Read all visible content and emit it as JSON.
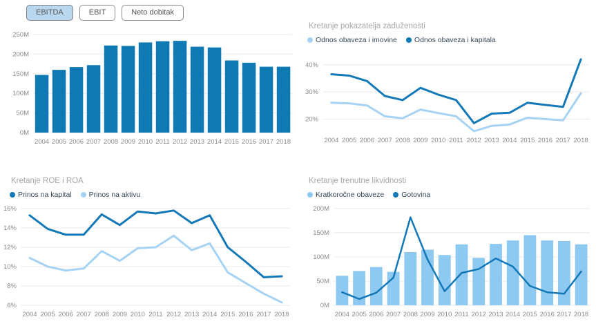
{
  "page": {
    "background": "#ffffff"
  },
  "colors": {
    "dark_blue": "#0f79b4",
    "light_blue_line": "#a6d2f4",
    "light_blue_bar": "#8dc9f0",
    "grid": "#eaeaea",
    "title_gray": "#a7a7a7",
    "axis_gray": "#8a8a8a",
    "legend_text": "#33475b",
    "button_selected_bg": "#b9d7ef"
  },
  "toolbar": {
    "buttons": [
      {
        "label": "EBITDA",
        "selected": true
      },
      {
        "label": "EBIT",
        "selected": false
      },
      {
        "label": "Neto dobitak",
        "selected": false
      }
    ]
  },
  "chart_data": [
    {
      "id": "ebitda-bars",
      "type": "bar",
      "title": "",
      "categories": [
        "2004",
        "2005",
        "2006",
        "2007",
        "2008",
        "2009",
        "2010",
        "2011",
        "2012",
        "2013",
        "2014",
        "2015",
        "2016",
        "2017",
        "2018"
      ],
      "series": [
        {
          "name": "EBITDA",
          "type": "bar",
          "color": "#0f79b4",
          "values": [
            147,
            160,
            167,
            172,
            222,
            221,
            230,
            233,
            234,
            219,
            217,
            184,
            178,
            168,
            168
          ]
        }
      ],
      "legend": [],
      "y_ticks": [
        {
          "value": 0,
          "label": "0M"
        },
        {
          "value": 50,
          "label": "50M"
        },
        {
          "value": 100,
          "label": "100M"
        },
        {
          "value": 150,
          "label": "150M"
        },
        {
          "value": 200,
          "label": "200M"
        },
        {
          "value": 250,
          "label": "250M"
        }
      ],
      "ylim": [
        0,
        250
      ],
      "unit": "M"
    },
    {
      "id": "debt-ratios",
      "type": "line",
      "title": "Kretanje pokazatelja zaduženosti",
      "categories": [
        "2004",
        "2005",
        "2006",
        "2007",
        "2008",
        "2009",
        "2010",
        "2011",
        "2012",
        "2013",
        "2014",
        "2015",
        "2016",
        "2017",
        "2018"
      ],
      "series": [
        {
          "name": "Odnos obaveza i imovine",
          "type": "line",
          "color": "#a6d2f4",
          "values": [
            26.0,
            25.8,
            25.0,
            21.0,
            20.3,
            23.5,
            22.2,
            21.0,
            15.5,
            17.5,
            18.0,
            20.5,
            20.0,
            19.5,
            29.5
          ]
        },
        {
          "name": "Odnos obaveza i kapitala",
          "type": "line",
          "color": "#1278b8",
          "values": [
            36.5,
            36.0,
            34.0,
            28.5,
            27.0,
            31.5,
            29.0,
            27.0,
            18.5,
            22.0,
            22.3,
            26.0,
            25.2,
            24.5,
            42.0
          ]
        }
      ],
      "legend": [
        {
          "label": "Odnos obaveza i imovine",
          "color": "#a6d2f4"
        },
        {
          "label": "Odnos obaveza i kapitala",
          "color": "#1278b8"
        }
      ],
      "y_ticks": [
        {
          "value": 20,
          "label": "20%"
        },
        {
          "value": 30,
          "label": "30%"
        },
        {
          "value": 40,
          "label": "40%"
        }
      ],
      "ylim": [
        15,
        43
      ],
      "unit": "%"
    },
    {
      "id": "roe-roa",
      "type": "line",
      "title": "Kretanje ROE i ROA",
      "categories": [
        "2004",
        "2005",
        "2006",
        "2007",
        "2008",
        "2009",
        "2010",
        "2011",
        "2012",
        "2013",
        "2014",
        "2015",
        "2016",
        "2017",
        "2018"
      ],
      "series": [
        {
          "name": "Prinos na aktivu",
          "type": "line",
          "color": "#a6d2f4",
          "values": [
            10.9,
            10.0,
            9.6,
            9.8,
            11.6,
            10.6,
            11.9,
            12.0,
            13.2,
            11.7,
            12.4,
            9.4,
            8.3,
            7.2,
            6.3
          ]
        },
        {
          "name": "Prinos na kapital",
          "type": "line",
          "color": "#1278b8",
          "values": [
            15.3,
            13.9,
            13.3,
            13.3,
            15.4,
            14.3,
            15.7,
            15.5,
            15.8,
            14.5,
            15.3,
            12.0,
            10.5,
            8.9,
            9.0
          ]
        }
      ],
      "legend": [
        {
          "label": "Prinos na kapital",
          "color": "#1278b8"
        },
        {
          "label": "Prinos na aktivu",
          "color": "#a6d2f4"
        }
      ],
      "y_ticks": [
        {
          "value": 6,
          "label": "6%"
        },
        {
          "value": 8,
          "label": "8%"
        },
        {
          "value": 10,
          "label": "10%"
        },
        {
          "value": 12,
          "label": "12%"
        },
        {
          "value": 14,
          "label": "14%"
        },
        {
          "value": 16,
          "label": "16%"
        }
      ],
      "ylim": [
        6,
        16
      ],
      "unit": "%"
    },
    {
      "id": "liquidity",
      "type": "combo",
      "title": "Kretanje trenutne likvidnosti",
      "categories": [
        "2004",
        "2005",
        "2006",
        "2007",
        "2008",
        "2009",
        "2010",
        "2011",
        "2012",
        "2013",
        "2014",
        "2015",
        "2016",
        "2017",
        "2018"
      ],
      "series": [
        {
          "name": "Kratkoročne obaveze",
          "type": "bar",
          "color": "#8dc9f0",
          "values": [
            61,
            71,
            79,
            69,
            110,
            115,
            104,
            126,
            98,
            127,
            134,
            145,
            134,
            133,
            126
          ]
        },
        {
          "name": "Gotovina",
          "type": "line",
          "color": "#1278b8",
          "values": [
            27,
            13,
            26,
            57,
            182,
            95,
            29,
            67,
            75,
            97,
            80,
            40,
            27,
            24,
            70
          ]
        }
      ],
      "legend": [
        {
          "label": "Kratkoročne obaveze",
          "color": "#8dc9f0"
        },
        {
          "label": "Gotovina",
          "color": "#1278b8"
        }
      ],
      "y_ticks": [
        {
          "value": 0,
          "label": "0M"
        },
        {
          "value": 50,
          "label": "50M"
        },
        {
          "value": 100,
          "label": "100M"
        },
        {
          "value": 150,
          "label": "150M"
        },
        {
          "value": 200,
          "label": "200M"
        }
      ],
      "ylim": [
        0,
        200
      ],
      "unit": "M"
    }
  ]
}
